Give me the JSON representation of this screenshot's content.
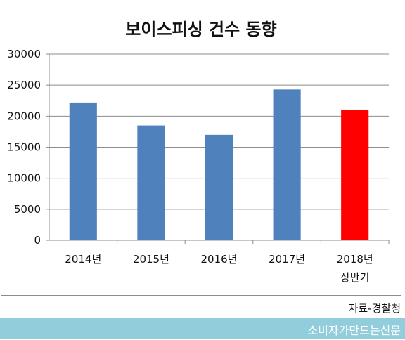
{
  "chart_data": {
    "type": "bar",
    "title": "보이스피싱 건수 동향",
    "categories": [
      [
        "2014년"
      ],
      [
        "2015년"
      ],
      [
        "2016년"
      ],
      [
        "2017년"
      ],
      [
        "2018년",
        "상반기"
      ]
    ],
    "values": [
      22200,
      18500,
      17000,
      24300,
      21000
    ],
    "ylim": [
      0,
      30000
    ],
    "yticks": [
      0,
      5000,
      10000,
      15000,
      20000,
      25000,
      30000
    ],
    "grid": true,
    "colors": [
      "#4f81bd",
      "#4f81bd",
      "#4f81bd",
      "#4f81bd",
      "#ff0000"
    ]
  },
  "source_text": "자료-경찰청",
  "footer": {
    "text": "소비자가만드는신문",
    "color": "#92cddc"
  }
}
